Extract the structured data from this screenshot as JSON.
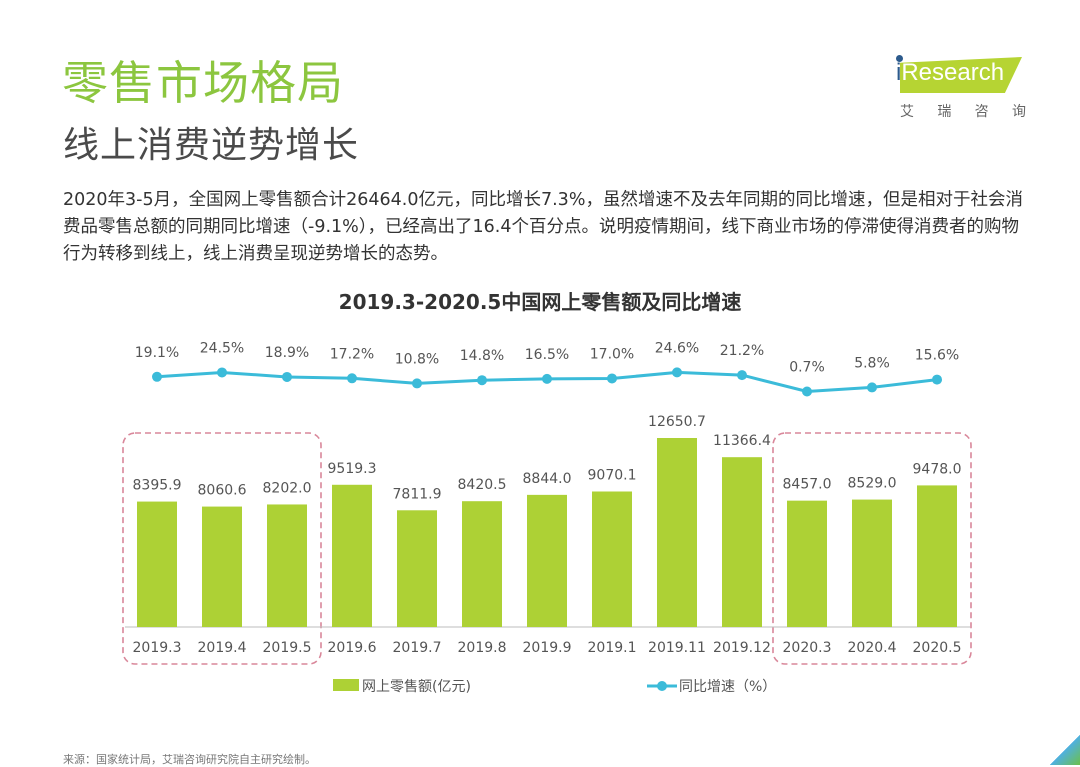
{
  "header": {
    "title": "零售市场格局",
    "subtitle": "线上消费逆势增长"
  },
  "logo": {
    "brand": "Research",
    "brand_prefix": "i",
    "chinese_chars": [
      "艾",
      "瑞",
      "咨",
      "询"
    ]
  },
  "body_text": "2020年3-5月，全国网上零售额合计26464.0亿元，同比增长7.3%，虽然增速不及去年同期的同比增速，但是相对于社会消费品零售总额的同期同比增速（-9.1%），已经高出了16.4个百分点。说明疫情期间，线下商业市场的停滞使得消费者的购物行为转移到线上，线上消费呈现逆势增长的态势。",
  "source": "来源：国家统计局，艾瑞咨询研究院自主研究绘制。",
  "colors": {
    "title_green": "#8cc63f",
    "bar": "#add135",
    "line": "#3bbbd9",
    "highlight_box": "#d9879a"
  },
  "chart_data": {
    "type": "bar+line",
    "title": "2019.3-2020.5中国网上零售额及同比增速",
    "categories": [
      "2019.3",
      "2019.4",
      "2019.5",
      "2019.6",
      "2019.7",
      "2019.8",
      "2019.9",
      "2019.1",
      "2019.11",
      "2019.12",
      "2020.3",
      "2020.4",
      "2020.5"
    ],
    "series": [
      {
        "name": "网上零售额(亿元)",
        "type": "bar",
        "values": [
          8395.9,
          8060.6,
          8202.0,
          9519.3,
          7811.9,
          8420.5,
          8844.0,
          9070.1,
          12650.7,
          11366.4,
          8457.0,
          8529.0,
          9478.0
        ],
        "labels": [
          "8395.9",
          "8060.6",
          "8202.0",
          "9519.3",
          "7811.9",
          "8420.5",
          "8844.0",
          "9070.1",
          "12650.7",
          "11366.4",
          "8457.0",
          "8529.0",
          "9478.0"
        ]
      },
      {
        "name": "同比增速（%）",
        "type": "line",
        "values": [
          19.1,
          24.5,
          18.9,
          17.2,
          10.8,
          14.8,
          16.5,
          17.0,
          24.6,
          21.2,
          0.7,
          5.8,
          15.6
        ],
        "labels": [
          "19.1%",
          "24.5%",
          "18.9%",
          "17.2%",
          "10.8%",
          "14.8%",
          "16.5%",
          "17.0%",
          "24.6%",
          "21.2%",
          "0.7%",
          "5.8%",
          "15.6%"
        ]
      }
    ],
    "highlight_groups": [
      {
        "from": "2019.3",
        "to": "2019.5"
      },
      {
        "from": "2020.3",
        "to": "2020.5"
      }
    ],
    "legend": {
      "position": "bottom",
      "items": [
        "网上零售额(亿元)",
        "同比增速（%）"
      ]
    },
    "grid": false,
    "y_axis_visible": false
  }
}
